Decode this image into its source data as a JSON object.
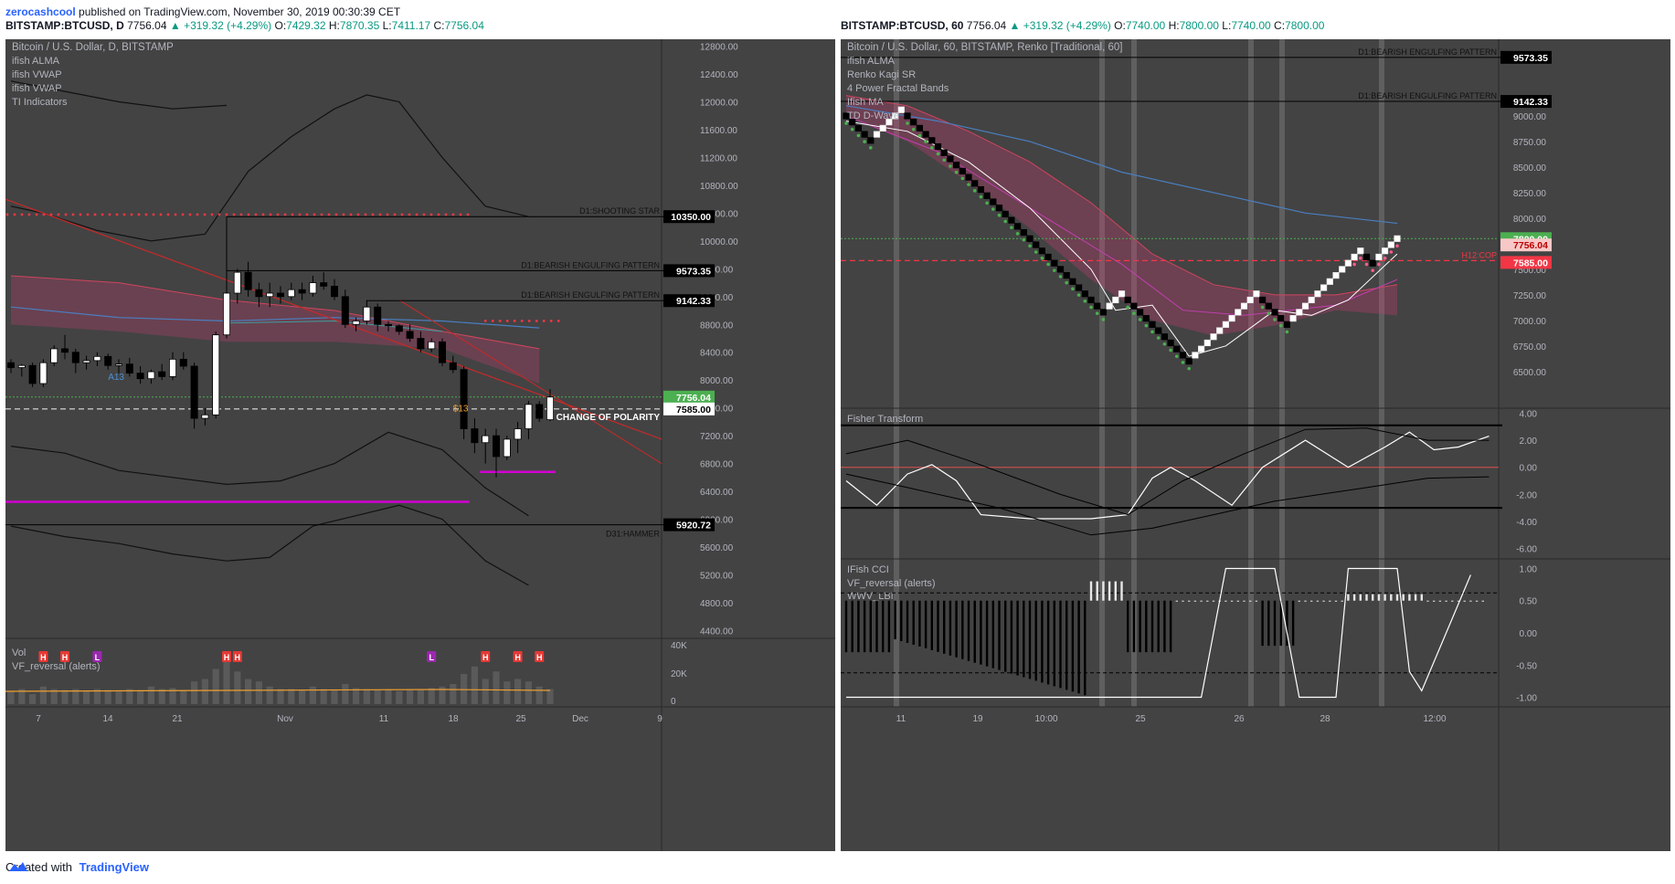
{
  "header": {
    "user": "zerocashcool",
    "published": "published on TradingView.com, November 30, 2019 00:30:39 CET"
  },
  "left_header": {
    "symbol": "BITSTAMP:BTCUSD, D",
    "price": "7756.04",
    "change": "▲ +319.32 (+4.29%)",
    "o": "7429.32",
    "h": "7870.35",
    "l": "7411.17",
    "c": "7756.04"
  },
  "right_header": {
    "symbol": "BITSTAMP:BTCUSD, 60",
    "price": "7756.04",
    "change": "▲ +319.32 (+4.29%)",
    "o": "7740.00",
    "h": "7800.00",
    "l": "7740.00",
    "c": "7800.00"
  },
  "footer": {
    "created": "Created with",
    "brand": "TradingView"
  },
  "colors": {
    "panel_bg": "#434343",
    "up": "#ffffff",
    "down": "#000000",
    "accent_green": "#4caf50",
    "accent_red": "#f23645",
    "magenta": "#d100d1"
  },
  "chart_data": [
    {
      "type": "bar",
      "subtype": "candlestick",
      "title": "Bitcoin / U.S. Dollar, D, BITSTAMP",
      "indicators": [
        "ifish ALMA",
        "ifish VWAP",
        "ifish VWAP",
        "TI Indicators"
      ],
      "ylim": [
        4300,
        12900
      ],
      "y_ticks": [
        "12800.00",
        "12400.00",
        "12000.00",
        "11600.00",
        "11200.00",
        "10800.00",
        "10400.00",
        "10000.00",
        "9600.00",
        "9200.00",
        "8800.00",
        "8400.00",
        "8000.00",
        "7600.00",
        "7200.00",
        "6800.00",
        "6400.00",
        "6000.00",
        "5600.00",
        "5200.00",
        "4800.00",
        "4400.00"
      ],
      "x_ticks": [
        "7",
        "14",
        "21",
        "Nov",
        "11",
        "18",
        "25",
        "Dec",
        "9"
      ],
      "ohlc": [
        [
          8250,
          8300,
          8100,
          8180
        ],
        [
          8180,
          8230,
          8050,
          8210
        ],
        [
          8210,
          8250,
          7900,
          7950
        ],
        [
          7950,
          8300,
          7900,
          8250
        ],
        [
          8250,
          8500,
          8200,
          8450
        ],
        [
          8450,
          8650,
          8300,
          8400
        ],
        [
          8400,
          8450,
          8100,
          8250
        ],
        [
          8250,
          8350,
          8150,
          8280
        ],
        [
          8280,
          8400,
          8200,
          8340
        ],
        [
          8340,
          8380,
          8150,
          8210
        ],
        [
          8210,
          8300,
          8100,
          8230
        ],
        [
          8230,
          8320,
          8050,
          8100
        ],
        [
          8100,
          8200,
          7950,
          8020
        ],
        [
          8020,
          8150,
          7950,
          8120
        ],
        [
          8120,
          8230,
          8000,
          8050
        ],
        [
          8050,
          8400,
          8000,
          8300
        ],
        [
          8300,
          8400,
          8150,
          8200
        ],
        [
          8200,
          8250,
          7300,
          7450
        ],
        [
          7450,
          7600,
          7350,
          7500
        ],
        [
          7500,
          8700,
          7450,
          8650
        ],
        [
          8650,
          10350,
          8600,
          9250
        ],
        [
          9250,
          9600,
          9100,
          9550
        ],
        [
          9550,
          9700,
          9200,
          9300
        ],
        [
          9300,
          9400,
          9050,
          9200
        ],
        [
          9200,
          9400,
          9050,
          9250
        ],
        [
          9250,
          9350,
          9100,
          9200
        ],
        [
          9200,
          9400,
          9150,
          9300
        ],
        [
          9300,
          9400,
          9150,
          9250
        ],
        [
          9250,
          9500,
          9200,
          9400
        ],
        [
          9400,
          9550,
          9300,
          9350
        ],
        [
          9350,
          9450,
          9150,
          9200
        ],
        [
          9200,
          9300,
          8750,
          8800
        ],
        [
          8800,
          8900,
          8700,
          8850
        ],
        [
          8850,
          9150,
          8800,
          9050
        ],
        [
          9050,
          9100,
          8700,
          8800
        ],
        [
          8800,
          8850,
          8700,
          8780
        ],
        [
          8780,
          8800,
          8650,
          8700
        ],
        [
          8700,
          8800,
          8550,
          8600
        ],
        [
          8600,
          8700,
          8400,
          8450
        ],
        [
          8450,
          8600,
          8400,
          8550
        ],
        [
          8550,
          8600,
          8200,
          8250
        ],
        [
          8250,
          8350,
          8100,
          8150
        ],
        [
          8150,
          8200,
          7150,
          7300
        ],
        [
          7300,
          7450,
          6950,
          7100
        ],
        [
          7100,
          7300,
          6800,
          7200
        ],
        [
          7200,
          7300,
          6600,
          6900
        ],
        [
          6900,
          7200,
          6850,
          7150
        ],
        [
          7150,
          7400,
          6950,
          7300
        ],
        [
          7300,
          7700,
          7150,
          7650
        ],
        [
          7650,
          7700,
          7400,
          7450
        ],
        [
          7430,
          7870,
          7410,
          7756
        ]
      ],
      "annotations": [
        "D1:SHOOTING STAR",
        "D1:BEARISH ENGULFING PATTERN",
        "D1:BEARISH ENGULFING PATTERN",
        "CHANGE OF POLARITY",
        "D31:HAMMER",
        "A13",
        "$13"
      ],
      "price_labels": [
        "10350.00",
        "9573.35",
        "9142.33",
        "7756.04",
        "7585.00",
        "5920.72"
      ],
      "volume": {
        "label": "Vol",
        "indicator": "VF_reversal (alerts)",
        "y_ticks": [
          "40K",
          "20K",
          "0"
        ],
        "markers": [
          "H",
          "H",
          "L",
          "H",
          "H",
          "L",
          "H",
          "H",
          "H"
        ]
      }
    },
    {
      "type": "line",
      "subtype": "renko",
      "title": "Bitcoin / U.S. Dollar, 60, BITSTAMP, Renko [Traditional, 60]",
      "indicators": [
        "ifish ALMA",
        "Renko Kagi SR",
        "4 Power Fractal Bands",
        "Ifish MA",
        "TD D-Wave"
      ],
      "ylim": [
        6150,
        9750
      ],
      "y_ticks": [
        "9000.00",
        "8750.00",
        "8500.00",
        "8250.00",
        "8000.00",
        "7750.00",
        "7500.00",
        "7250.00",
        "7000.00",
        "6750.00",
        "6500.00"
      ],
      "x_ticks": [
        "11",
        "19",
        "10:00",
        "25",
        "26",
        "28",
        "12:00"
      ],
      "bricks": [
        9000,
        8940,
        8880,
        8820,
        8760,
        8820,
        8880,
        8940,
        9000,
        9060,
        9000,
        8940,
        8880,
        8820,
        8760,
        8700,
        8640,
        8580,
        8520,
        8460,
        8400,
        8340,
        8280,
        8220,
        8160,
        8100,
        8040,
        7980,
        7920,
        7860,
        7800,
        7740,
        7680,
        7620,
        7560,
        7500,
        7440,
        7380,
        7320,
        7260,
        7200,
        7140,
        7080,
        7140,
        7200,
        7260,
        7200,
        7140,
        7080,
        7020,
        6960,
        6900,
        6840,
        6780,
        6720,
        6660,
        6600,
        6660,
        6720,
        6780,
        6840,
        6900,
        6960,
        7020,
        7080,
        7140,
        7200,
        7260,
        7200,
        7140,
        7080,
        7020,
        6960,
        7020,
        7080,
        7140,
        7200,
        7260,
        7320,
        7380,
        7440,
        7500,
        7560,
        7620,
        7680,
        7620,
        7560,
        7620,
        7680,
        7740,
        7800
      ],
      "annotations": [
        "D1:BEARISH ENGULFING PATTERN",
        "D1:BEARISH ENGULFING PATTERN",
        "H12:COP"
      ],
      "price_labels": [
        "9573.35",
        "9142.33",
        "7800.00",
        "7756.04",
        "7585.00"
      ],
      "fisher": {
        "label": "Fisher Transform",
        "y_ticks": [
          "4.00",
          "2.00",
          "0.00",
          "-2.00",
          "-4.00",
          "-6.00"
        ]
      },
      "cci": {
        "label": "IFish CCI",
        "indicators": [
          "VF_reversal (alerts)",
          "WWV_LBI"
        ],
        "y_ticks": [
          "1.00",
          "0.50",
          "0.00",
          "-0.50",
          "-1.00"
        ]
      }
    }
  ]
}
